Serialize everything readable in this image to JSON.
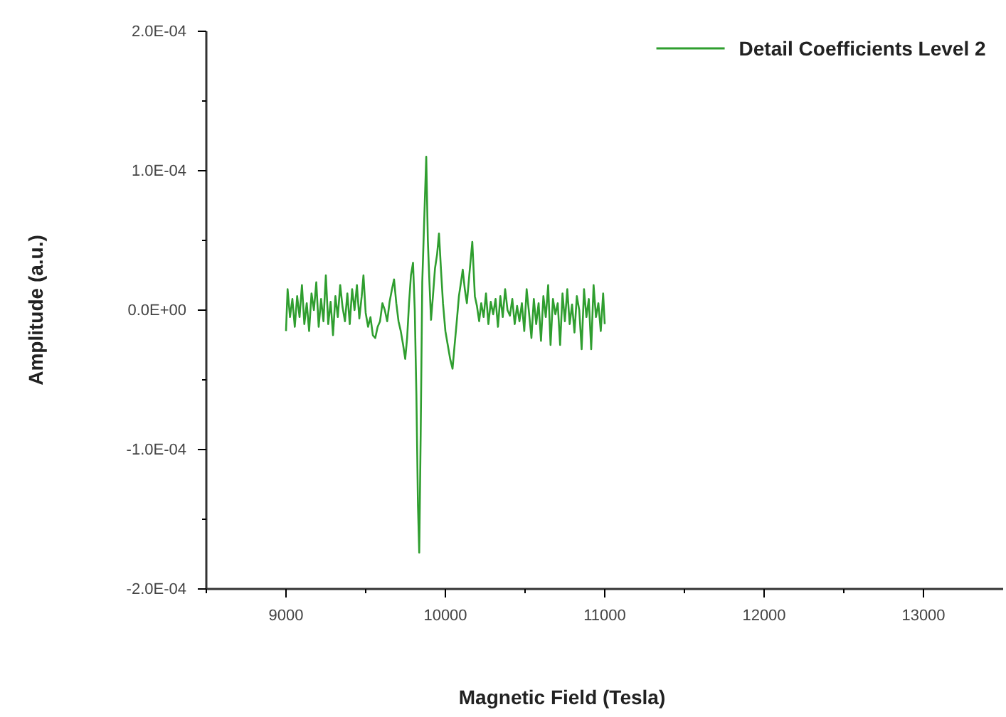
{
  "chart_data": {
    "type": "line",
    "xlabel": "Magnetic Field (Tesla)",
    "ylabel": "Amplitude (a.u.)",
    "xlim": [
      8500,
      13500
    ],
    "xticks": [
      {
        "value": 8500,
        "label": null
      },
      9000,
      {
        "value": 9500,
        "label": null
      },
      10000,
      {
        "value": 10500,
        "label": null
      },
      11000,
      {
        "value": 11500,
        "label": null
      },
      12000,
      {
        "value": 12500,
        "label": null
      },
      13000
    ],
    "ylim": [
      -0.0002,
      0.0002
    ],
    "yticks": [
      {
        "value": -0.0002,
        "label": "-2.0E-04"
      },
      {
        "value": -0.00015,
        "label": null
      },
      {
        "value": -0.0001,
        "label": "-1.0E-04"
      },
      {
        "value": -5e-05,
        "label": null
      },
      {
        "value": 0,
        "label": "0.0E+00"
      },
      {
        "value": 5e-05,
        "label": null
      },
      {
        "value": 0.0001,
        "label": "1.0E-04"
      },
      {
        "value": 0.00015,
        "label": null
      },
      {
        "value": 0.0002,
        "label": "2.0E-04"
      }
    ],
    "grid": false,
    "legend": "top right",
    "marker": "none",
    "line_style": "solid",
    "series": [
      {
        "name": "Detail Coefficients Level 2",
        "color": "#2f9e2f",
        "x": [
          9000,
          9010,
          9025,
          9040,
          9055,
          9070,
          9085,
          9100,
          9115,
          9130,
          9145,
          9160,
          9175,
          9190,
          9205,
          9220,
          9235,
          9250,
          9265,
          9280,
          9295,
          9310,
          9325,
          9340,
          9355,
          9370,
          9385,
          9400,
          9415,
          9430,
          9445,
          9460,
          9475,
          9486,
          9500,
          9515,
          9530,
          9545,
          9560,
          9575,
          9590,
          9605,
          9620,
          9635,
          9650,
          9665,
          9678,
          9692,
          9706,
          9720,
          9735,
          9748,
          9760,
          9772,
          9784,
          9797,
          9808,
          9818,
          9828,
          9836,
          9845,
          9855,
          9866,
          9880,
          9890,
          9900,
          9910,
          9922,
          9935,
          9948,
          9960,
          9972,
          9985,
          10000,
          10015,
          10030,
          10045,
          10058,
          10070,
          10085,
          10098,
          10109,
          10122,
          10135,
          10150,
          10169,
          10185,
          10198,
          10212,
          10225,
          10240,
          10255,
          10270,
          10285,
          10300,
          10315,
          10330,
          10345,
          10360,
          10375,
          10390,
          10405,
          10420,
          10435,
          10450,
          10465,
          10480,
          10495,
          10510,
          10525,
          10540,
          10555,
          10570,
          10585,
          10600,
          10615,
          10630,
          10645,
          10660,
          10675,
          10690,
          10705,
          10720,
          10735,
          10750,
          10765,
          10780,
          10795,
          10810,
          10825,
          10840,
          10855,
          10870,
          10885,
          10900,
          10915,
          10930,
          10945,
          10960,
          10975,
          10990,
          11000
        ],
        "values": [
          -1.5e-05,
          1.5e-05,
          -5e-06,
          8e-06,
          -1.2e-05,
          1e-05,
          -5e-06,
          1.8e-05,
          -1e-05,
          5e-06,
          -1.5e-05,
          1.2e-05,
          0,
          2e-05,
          -1.2e-05,
          8e-06,
          -8e-06,
          2.5e-05,
          -1e-05,
          6e-06,
          -1.8e-05,
          1e-05,
          -5e-06,
          1.8e-05,
          2e-06,
          -8e-06,
          1.2e-05,
          -1e-05,
          1.5e-05,
          0,
          1.8e-05,
          -6e-06,
          1e-05,
          2.5e-05,
          -2e-06,
          -1.2e-05,
          -5e-06,
          -1.8e-05,
          -2e-05,
          -1.2e-05,
          -8e-06,
          5e-06,
          0,
          -8e-06,
          6e-06,
          1.5e-05,
          2.2e-05,
          5e-06,
          -8e-06,
          -1.5e-05,
          -2.5e-05,
          -3.5e-05,
          -2e-05,
          5e-06,
          2.5e-05,
          3.4e-05,
          0,
          -6e-05,
          -0.00014,
          -0.000174,
          -9e-05,
          2e-05,
          6e-05,
          0.00011,
          5e-05,
          2e-05,
          -7e-06,
          1e-05,
          3e-05,
          4e-05,
          5.5e-05,
          3e-05,
          5e-06,
          -1.5e-05,
          -2.5e-05,
          -3.5e-05,
          -4.2e-05,
          -2.5e-05,
          -1e-05,
          1e-05,
          2e-05,
          2.9e-05,
          1.5e-05,
          5e-06,
          2.5e-05,
          4.9e-05,
          1e-05,
          3e-06,
          -8e-06,
          5e-06,
          -5e-06,
          1.2e-05,
          -1e-05,
          6e-06,
          -3e-06,
          8e-06,
          -1.2e-05,
          1e-05,
          -5e-06,
          1.5e-05,
          0,
          -4e-06,
          8e-06,
          -1e-05,
          3e-06,
          -8e-06,
          5e-06,
          -1.5e-05,
          1.5e-05,
          -2e-06,
          -2e-05,
          8e-06,
          -1e-05,
          5e-06,
          -2.2e-05,
          1e-05,
          -5e-06,
          1.8e-05,
          -2.5e-05,
          8e-06,
          -3e-06,
          5e-06,
          -2.5e-05,
          1.2e-05,
          -8e-06,
          1.5e-05,
          -1e-05,
          4e-06,
          -1.6e-05,
          1e-05,
          0,
          -2.8e-05,
          1.5e-05,
          -5e-06,
          8e-06,
          -2.8e-05,
          1.8e-05,
          -5e-06,
          5e-06,
          -1.5e-05,
          1.2e-05,
          -1e-05
        ]
      }
    ]
  }
}
